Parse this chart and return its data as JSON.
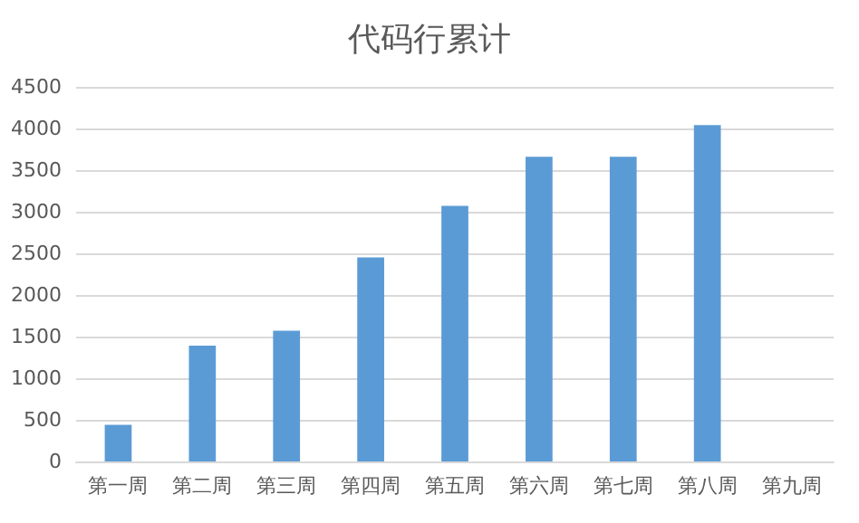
{
  "chart_data": {
    "type": "bar",
    "title": "代码行累计",
    "categories": [
      "第一周",
      "第二周",
      "第三周",
      "第四周",
      "第五周",
      "第六周",
      "第七周",
      "第八周",
      "第九周"
    ],
    "values": [
      440,
      1390,
      1570,
      2450,
      3070,
      3660,
      3660,
      4040,
      null
    ],
    "color": "#5b9bd5",
    "ylim": [
      0,
      4500
    ],
    "yticks": [
      0,
      500,
      1000,
      1500,
      2000,
      2500,
      3000,
      3500,
      4000,
      4500
    ],
    "grid": "y"
  }
}
